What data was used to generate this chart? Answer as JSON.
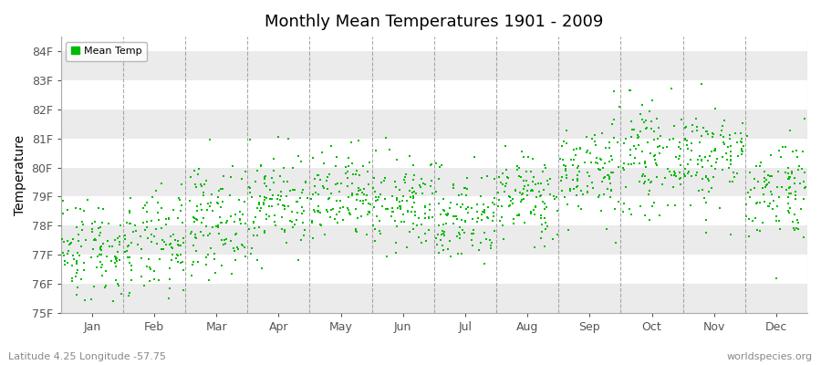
{
  "title": "Monthly Mean Temperatures 1901 - 2009",
  "ylabel": "Temperature",
  "xlabel_labels": [
    "Jan",
    "Feb",
    "Mar",
    "Apr",
    "May",
    "Jun",
    "Jul",
    "Aug",
    "Sep",
    "Oct",
    "Nov",
    "Dec"
  ],
  "ytick_labels": [
    "75F",
    "76F",
    "77F",
    "78F",
    "79F",
    "80F",
    "81F",
    "82F",
    "83F",
    "84F"
  ],
  "ylim_min": 75.0,
  "ylim_max": 84.5,
  "background_color": "#ffffff",
  "plot_bg_color": "#ffffff",
  "band_color": "#ebebeb",
  "dot_color": "#00bb00",
  "dot_size": 2.5,
  "legend_label": "Mean Temp",
  "subtitle": "Latitude 4.25 Longitude -57.75",
  "credit": "worldspecies.org",
  "n_years": 109,
  "seed": 42,
  "monthly_means_F": [
    77.2,
    77.3,
    78.2,
    78.8,
    78.9,
    78.7,
    78.3,
    79.0,
    79.9,
    80.3,
    80.4,
    79.3
  ],
  "monthly_stds_F": [
    0.9,
    0.9,
    0.9,
    0.85,
    0.8,
    0.78,
    0.8,
    0.75,
    0.85,
    0.88,
    0.9,
    0.9
  ]
}
